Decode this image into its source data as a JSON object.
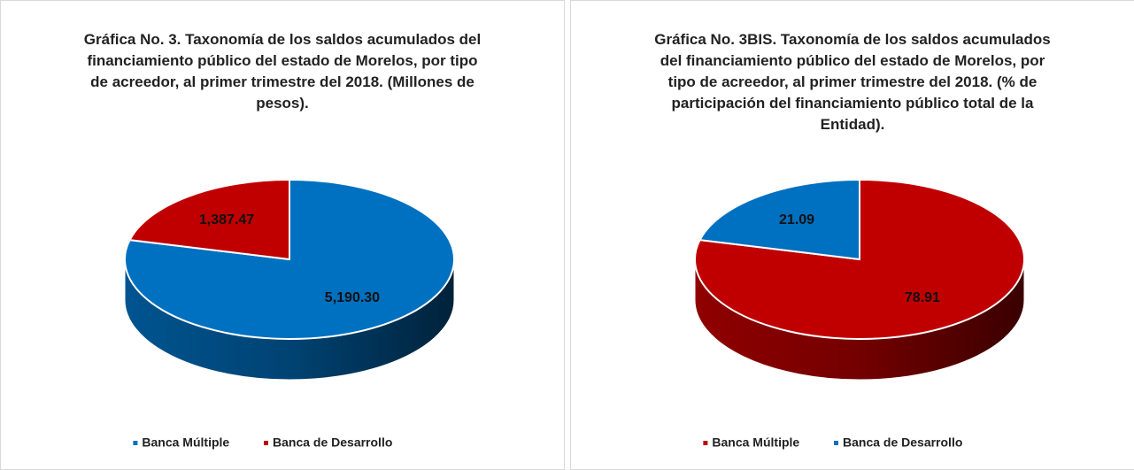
{
  "chart_data": [
    {
      "type": "pie",
      "title": "Gráfica No. 3. Taxonomía de los saldos acumulados del financiamiento público del estado de Morelos, por tipo de acreedor, al primer trimestre del 2018. (Millones de pesos).",
      "categories": [
        "Banca Múltiple",
        "Banca de Desarrollo"
      ],
      "values": [
        5190.3,
        1387.47
      ],
      "value_labels": [
        "5,190.30",
        "1,387.47"
      ],
      "colors": [
        "#0070c0",
        "#c00000"
      ],
      "legend": "bottom"
    },
    {
      "type": "pie",
      "title": "Gráfica No. 3BIS. Taxonomía de los saldos acumulados del financiamiento público del estado de Morelos, por tipo de acreedor, al primer trimestre del 2018. (% de participación del financiamiento público total de la Entidad).",
      "categories": [
        "Banca Múltiple",
        "Banca de Desarrollo"
      ],
      "values": [
        78.91,
        21.09
      ],
      "colors": [
        "#c00000",
        "#0070c0"
      ],
      "legend": "bottom"
    }
  ]
}
